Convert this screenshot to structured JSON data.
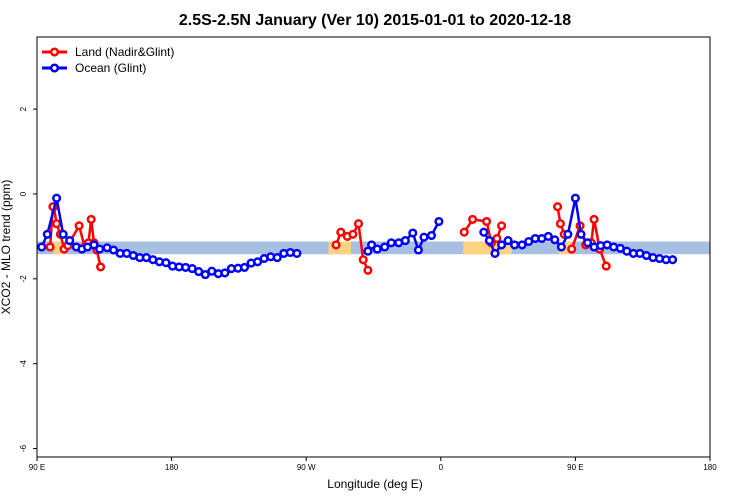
{
  "chart_data": {
    "type": "line",
    "title": "2.5S-2.5N January (Ver 10)   2015-01-01 to 2020-12-18",
    "xlabel": "Longitude (deg E)",
    "ylabel": "XCO2 - MLO trend (ppm)",
    "xlim": [
      90,
      450
    ],
    "ylim": [
      -6.2,
      3.7
    ],
    "x_ticks": [
      {
        "value": 90,
        "label": "90 E"
      },
      {
        "value": 162,
        "label": "180"
      },
      {
        "value": 234,
        "label": "90 W"
      },
      {
        "value": 306,
        "label": "0"
      },
      {
        "value": 378,
        "label": "90 E"
      },
      {
        "value": 450,
        "label": "180"
      }
    ],
    "y_ticks": [
      {
        "value": 2,
        "label": "2"
      },
      {
        "value": 0,
        "label": "0"
      },
      {
        "value": -2,
        "label": "-2"
      },
      {
        "value": -4,
        "label": "-4"
      },
      {
        "value": -6,
        "label": "-6"
      }
    ],
    "band": {
      "y_low": -1.42,
      "y_high": -1.12,
      "base_color": "#a7bfe0",
      "land_color": "#ffd27f",
      "land_segments": [
        [
          99,
          104
        ],
        [
          246,
          258
        ],
        [
          318,
          344
        ],
        [
          369,
          376
        ]
      ]
    },
    "legend": {
      "position": "top-left",
      "entries": [
        {
          "label": "Land (Nadir&Glint)",
          "color": "#ff0000"
        },
        {
          "label": "Ocean (Glint)",
          "color": "#0000ff"
        }
      ]
    },
    "series": [
      {
        "name": "Land (Nadir&Glint)",
        "color": "#ff0000",
        "segments": [
          [
            [
              99.0,
              -0.3
            ],
            [
              100.5,
              -0.7
            ],
            [
              102.5,
              -0.95
            ],
            [
              104.5,
              -1.3
            ],
            [
              106.5,
              -1.22
            ],
            [
              112.5,
              -0.75
            ],
            [
              115.5,
              -1.25
            ],
            [
              117.5,
              -1.15
            ],
            [
              119.0,
              -0.6
            ],
            [
              120.5,
              -1.15
            ],
            [
              122.0,
              -1.32
            ],
            [
              124.0,
              -1.72
            ]
          ],
          [
            [
              250.0,
              -1.2
            ],
            [
              252.5,
              -0.9
            ],
            [
              256.0,
              -1.0
            ],
            [
              259.0,
              -0.95
            ],
            [
              262.0,
              -0.7
            ],
            [
              264.5,
              -1.55
            ],
            [
              267.0,
              -1.8
            ]
          ],
          [
            [
              318.5,
              -0.9
            ],
            [
              323.0,
              -0.6
            ],
            [
              330.5,
              -0.65
            ],
            [
              333.0,
              -1.15
            ],
            [
              336.0,
              -1.05
            ],
            [
              338.5,
              -0.75
            ]
          ],
          [
            [
              376.0,
              -1.3
            ],
            [
              380.5,
              -0.75
            ],
            [
              383.5,
              -1.2
            ],
            [
              386.5,
              -1.15
            ],
            [
              388.0,
              -0.6
            ],
            [
              391.0,
              -1.3
            ],
            [
              394.5,
              -1.7
            ]
          ],
          [
            [
              97.0,
              -1.25
            ],
            [
              98.5,
              -0.3
            ]
          ],
          [
            [
              368.5,
              -0.3
            ],
            [
              370.0,
              -0.7
            ],
            [
              372.0,
              -0.95
            ]
          ]
        ]
      },
      {
        "name": "Ocean (Glint)",
        "color": "#0000ff",
        "segments": [
          [
            [
              92.5,
              -1.25
            ],
            [
              95.5,
              -0.95
            ],
            [
              100.5,
              -0.1
            ],
            [
              104.0,
              -0.95
            ],
            [
              107.5,
              -1.1
            ],
            [
              111.0,
              -1.25
            ],
            [
              114.0,
              -1.3
            ],
            [
              117.0,
              -1.25
            ],
            [
              120.5,
              -1.2
            ],
            [
              123.5,
              -1.3
            ],
            [
              127.5,
              -1.27
            ],
            [
              131.0,
              -1.32
            ],
            [
              134.5,
              -1.4
            ],
            [
              138.0,
              -1.4
            ],
            [
              141.5,
              -1.45
            ],
            [
              145.0,
              -1.5
            ],
            [
              148.5,
              -1.5
            ],
            [
              152.0,
              -1.55
            ],
            [
              155.5,
              -1.6
            ],
            [
              159.0,
              -1.62
            ],
            [
              162.5,
              -1.7
            ],
            [
              166.0,
              -1.72
            ],
            [
              169.5,
              -1.73
            ],
            [
              173.0,
              -1.76
            ],
            [
              176.5,
              -1.83
            ],
            [
              180.0,
              -1.9
            ],
            [
              183.5,
              -1.82
            ],
            [
              187.0,
              -1.88
            ],
            [
              190.5,
              -1.86
            ],
            [
              194.0,
              -1.76
            ],
            [
              197.5,
              -1.75
            ],
            [
              201.0,
              -1.73
            ],
            [
              204.5,
              -1.63
            ],
            [
              208.0,
              -1.6
            ],
            [
              211.5,
              -1.52
            ],
            [
              215.0,
              -1.48
            ],
            [
              218.5,
              -1.5
            ],
            [
              222.0,
              -1.4
            ],
            [
              225.5,
              -1.38
            ],
            [
              229.0,
              -1.4
            ]
          ],
          [
            [
              267.0,
              -1.35
            ],
            [
              269.0,
              -1.2
            ],
            [
              272.0,
              -1.3
            ],
            [
              276.0,
              -1.25
            ],
            [
              279.5,
              -1.15
            ],
            [
              283.5,
              -1.15
            ],
            [
              287.0,
              -1.1
            ],
            [
              291.0,
              -0.92
            ],
            [
              294.0,
              -1.32
            ],
            [
              297.0,
              -1.02
            ],
            [
              301.0,
              -0.98
            ],
            [
              305.0,
              -0.65
            ]
          ],
          [
            [
              329.0,
              -0.9
            ],
            [
              332.0,
              -1.1
            ],
            [
              335.0,
              -1.4
            ],
            [
              338.5,
              -1.2
            ],
            [
              342.0,
              -1.1
            ],
            [
              345.5,
              -1.2
            ],
            [
              349.5,
              -1.2
            ],
            [
              353.0,
              -1.12
            ],
            [
              356.5,
              -1.05
            ],
            [
              360.0,
              -1.05
            ],
            [
              363.5,
              -1.0
            ],
            [
              367.0,
              -1.08
            ],
            [
              370.5,
              -1.25
            ],
            [
              374.0,
              -0.95
            ],
            [
              378.0,
              -0.1
            ],
            [
              381.0,
              -0.95
            ],
            [
              384.5,
              -1.15
            ],
            [
              388.0,
              -1.25
            ],
            [
              391.5,
              -1.22
            ],
            [
              395.0,
              -1.2
            ],
            [
              398.5,
              -1.25
            ],
            [
              402.0,
              -1.28
            ],
            [
              405.5,
              -1.35
            ],
            [
              409.0,
              -1.4
            ],
            [
              412.5,
              -1.4
            ],
            [
              416.0,
              -1.45
            ],
            [
              419.5,
              -1.5
            ],
            [
              423.0,
              -1.52
            ],
            [
              426.5,
              -1.55
            ],
            [
              430.0,
              -1.55
            ]
          ]
        ]
      }
    ]
  }
}
